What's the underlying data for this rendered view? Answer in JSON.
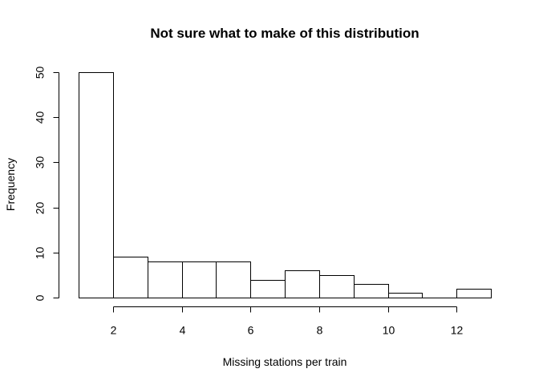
{
  "chart_data": {
    "type": "bar",
    "subtype": "histogram",
    "title": "Not sure what to make of this distribution",
    "xlabel": "Missing stations per train",
    "ylabel": "Frequency",
    "bins": [
      {
        "start": 1,
        "end": 2,
        "count": 50
      },
      {
        "start": 2,
        "end": 3,
        "count": 9
      },
      {
        "start": 3,
        "end": 4,
        "count": 8
      },
      {
        "start": 4,
        "end": 5,
        "count": 8
      },
      {
        "start": 5,
        "end": 6,
        "count": 8
      },
      {
        "start": 6,
        "end": 7,
        "count": 4
      },
      {
        "start": 7,
        "end": 8,
        "count": 6
      },
      {
        "start": 8,
        "end": 9,
        "count": 5
      },
      {
        "start": 9,
        "end": 10,
        "count": 3
      },
      {
        "start": 10,
        "end": 11,
        "count": 1
      },
      {
        "start": 11,
        "end": 12,
        "count": 0
      },
      {
        "start": 12,
        "end": 13,
        "count": 2
      }
    ],
    "xlim": [
      1,
      13
    ],
    "ylim": [
      0,
      50
    ],
    "xticks": [
      2,
      4,
      6,
      8,
      10,
      12
    ],
    "yticks": [
      0,
      10,
      20,
      30,
      40,
      50
    ],
    "grid": false,
    "legend": "none",
    "colors": {
      "bar_fill": "#ffffff",
      "bar_stroke": "#000000"
    }
  }
}
